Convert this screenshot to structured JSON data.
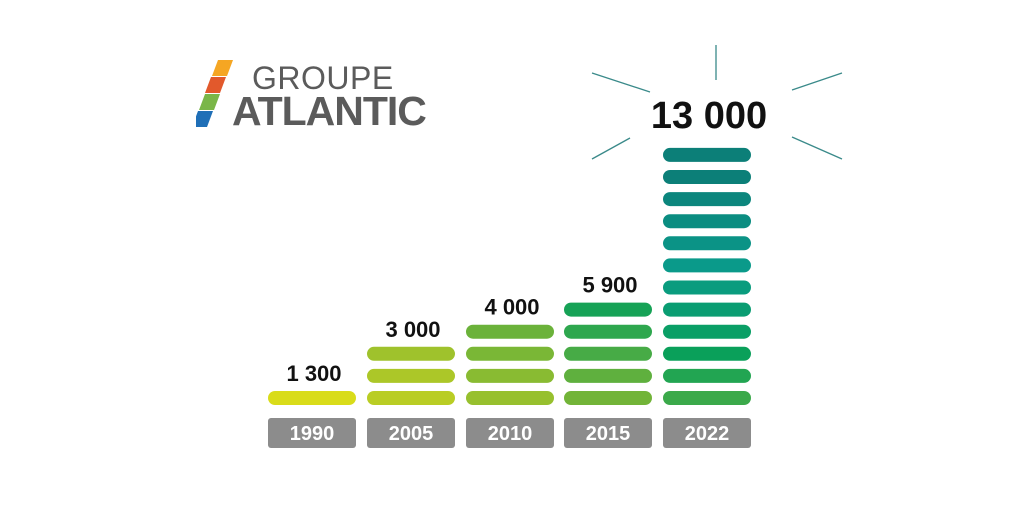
{
  "logo": {
    "line1": "GROUPE",
    "line2": "ATLANTIC",
    "colors": [
      "#f5a623",
      "#e2592c",
      "#7ab648",
      "#1f6fb7"
    ]
  },
  "chart_data": {
    "type": "bar",
    "categories": [
      "1990",
      "2005",
      "2010",
      "2015",
      "2022"
    ],
    "values": [
      1300,
      3000,
      4000,
      5900,
      13000
    ],
    "value_labels": [
      "1 300",
      "3 000",
      "4 000",
      "5 900",
      "13 000"
    ],
    "title": "",
    "xlabel": "",
    "ylabel": "",
    "grid": false,
    "highlight": "2022"
  },
  "colors": {
    "year_label_bg": "#8c8c8c",
    "year_label_text": "#ffffff",
    "value_text": "#111111",
    "burst_line": "#3a8a8a",
    "bar_gradient": [
      "#d9dc1a",
      "#a6c42a",
      "#6bb23a",
      "#0aa05a",
      "#0a9a8a",
      "#0c7f78"
    ]
  }
}
